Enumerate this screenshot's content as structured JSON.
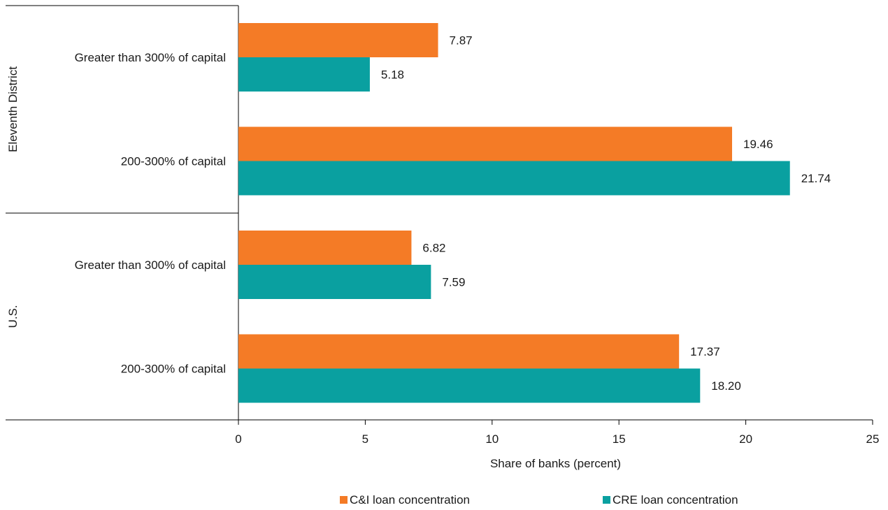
{
  "chart_data": {
    "type": "bar",
    "orientation": "horizontal",
    "title": "",
    "xlabel": "Share of banks (percent)",
    "ylabel": "",
    "xlim": [
      0,
      25
    ],
    "x_ticks": [
      0,
      5,
      10,
      15,
      20,
      25
    ],
    "grid": false,
    "legend_position": "bottom",
    "groups": [
      {
        "label": "Eleventh District",
        "categories": [
          "Greater than 300% of capital",
          "200-300% of capital"
        ]
      },
      {
        "label": "U.S.",
        "categories": [
          "Greater than 300% of capital",
          "200-300% of capital"
        ]
      }
    ],
    "series": [
      {
        "name": "C&I loan concentration",
        "color": "#f47b26",
        "values": [
          7.87,
          19.46,
          6.82,
          17.37
        ],
        "labels": [
          "7.87",
          "19.46",
          "6.82",
          "17.37"
        ]
      },
      {
        "name": "CRE loan concentration",
        "color": "#0aa0a0",
        "values": [
          5.18,
          21.74,
          7.59,
          18.2
        ],
        "labels": [
          "5.18",
          "21.74",
          "7.59",
          "18.20"
        ]
      }
    ]
  }
}
